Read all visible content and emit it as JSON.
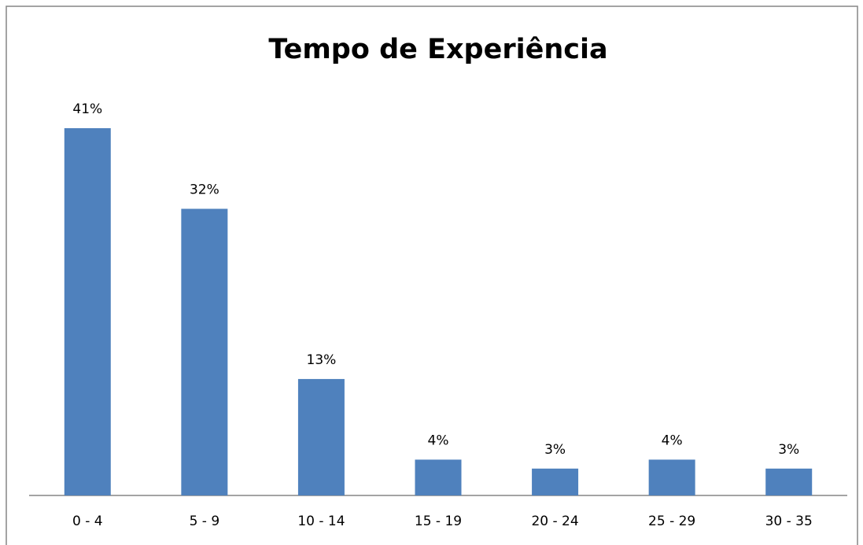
{
  "chart_data": {
    "type": "bar",
    "title": "Tempo de Experiência",
    "categories": [
      "0 - 4",
      "5 - 9",
      "10 - 14",
      "15 - 19",
      "20 - 24",
      "25 - 29",
      "30 - 35"
    ],
    "values": [
      41,
      32,
      13,
      4,
      3,
      4,
      3
    ],
    "value_labels": [
      "41%",
      "32%",
      "13%",
      "4%",
      "3%",
      "4%",
      "3%"
    ],
    "color": "#4f81bd"
  }
}
